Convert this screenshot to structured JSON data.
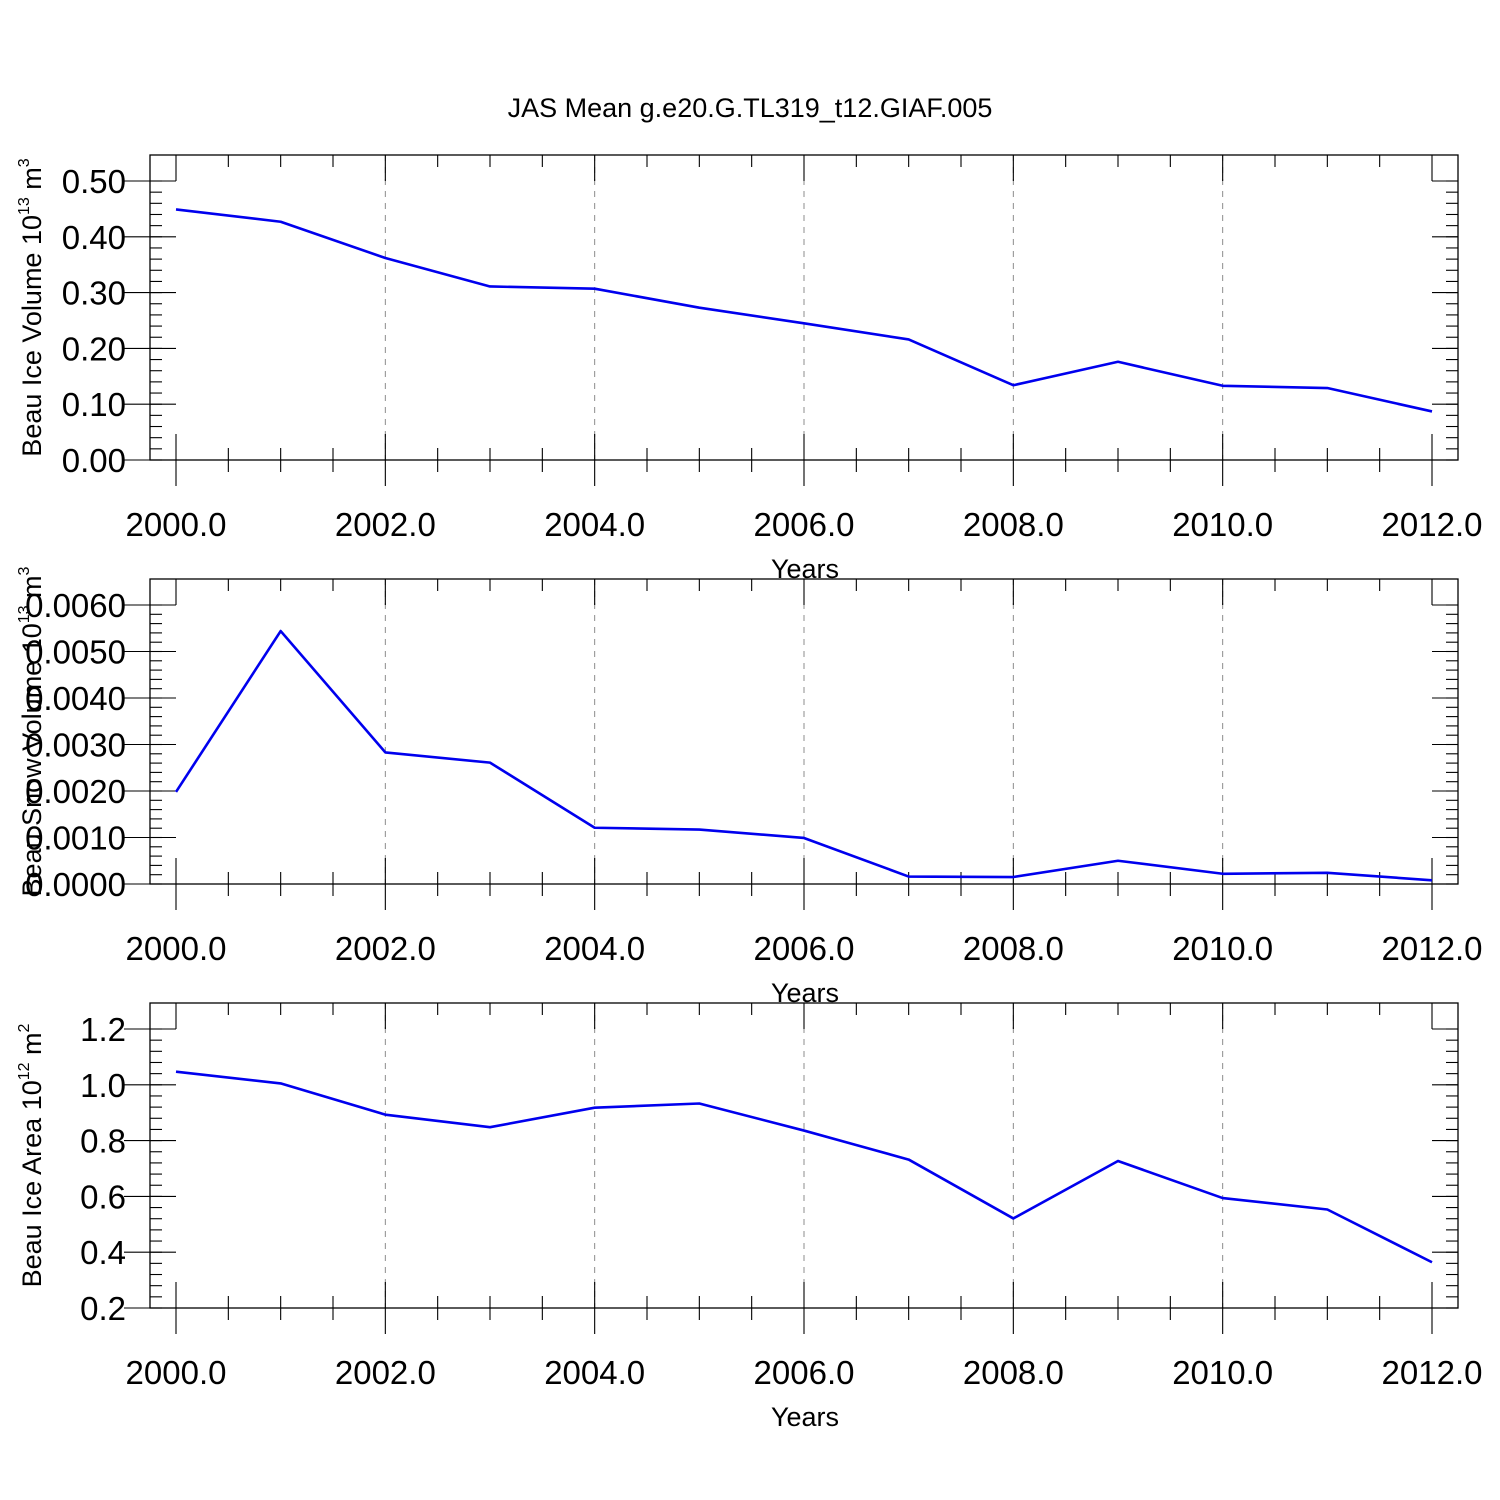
{
  "title": "JAS Mean g.e20.G.TL319_t12.GIAF.005",
  "colors": {
    "series": "#0000ee",
    "grid": "#8c8c8c",
    "axes": "#000000"
  },
  "chart_data": [
    {
      "type": "line",
      "xlabel": "Years",
      "ylabel": {
        "text": "Beau Ice Volume 10",
        "sup": "13",
        "unit": " m",
        "unit_sup": "3"
      },
      "xlim": [
        2000,
        2012
      ],
      "ylim": [
        0,
        0.5
      ],
      "x_ticks": [
        2000,
        2002,
        2004,
        2006,
        2008,
        2010,
        2012
      ],
      "x_tick_labels": [
        "2000.0",
        "2002.0",
        "2004.0",
        "2006.0",
        "2008.0",
        "2010.0",
        "2012.0"
      ],
      "y_ticks": [
        0,
        0.1,
        0.2,
        0.3,
        0.4,
        0.5
      ],
      "y_tick_labels": [
        "0.00",
        "0.10",
        "0.20",
        "0.30",
        "0.40",
        "0.50"
      ],
      "y_minor_step": 0.02,
      "grid": "vertical dashed at major x ticks",
      "series": [
        {
          "x": [
            2000,
            2001,
            2002,
            2003,
            2004,
            2005,
            2006,
            2007,
            2008,
            2009,
            2010,
            2011,
            2012
          ],
          "values": [
            0.449,
            0.427,
            0.362,
            0.311,
            0.307,
            0.273,
            0.245,
            0.216,
            0.134,
            0.176,
            0.133,
            0.129,
            0.087
          ]
        }
      ]
    },
    {
      "type": "line",
      "xlabel": "Years",
      "ylabel": {
        "text": "Beau Snow Volume 10",
        "sup": "13",
        "unit": " m",
        "unit_sup": "3"
      },
      "xlim": [
        2000,
        2012
      ],
      "ylim": [
        0,
        0.006
      ],
      "x_ticks": [
        2000,
        2002,
        2004,
        2006,
        2008,
        2010,
        2012
      ],
      "x_tick_labels": [
        "2000.0",
        "2002.0",
        "2004.0",
        "2006.0",
        "2008.0",
        "2010.0",
        "2012.0"
      ],
      "y_ticks": [
        0,
        0.001,
        0.002,
        0.003,
        0.004,
        0.005,
        0.006
      ],
      "y_tick_labels": [
        "0.0000",
        "0.0010",
        "0.0020",
        "0.0030",
        "0.0040",
        "0.0050",
        "0.0060"
      ],
      "y_minor_step": 0.0002,
      "grid": "vertical dashed at major x ticks",
      "series": [
        {
          "x": [
            2000,
            2001,
            2002,
            2003,
            2004,
            2005,
            2006,
            2007,
            2008,
            2009,
            2010,
            2011,
            2012
          ],
          "values": [
            0.00198,
            0.00544,
            0.00283,
            0.00261,
            0.00121,
            0.00117,
            0.00099,
            0.00016,
            0.00015,
            0.0005,
            0.00022,
            0.00024,
            8e-05
          ]
        }
      ]
    },
    {
      "type": "line",
      "xlabel": "Years",
      "ylabel": {
        "text": "Beau Ice Area 10",
        "sup": "12",
        "unit": " m",
        "unit_sup": "2"
      },
      "xlim": [
        2000,
        2012
      ],
      "ylim": [
        0.2,
        1.2
      ],
      "x_ticks": [
        2000,
        2002,
        2004,
        2006,
        2008,
        2010,
        2012
      ],
      "x_tick_labels": [
        "2000.0",
        "2002.0",
        "2004.0",
        "2006.0",
        "2008.0",
        "2010.0",
        "2012.0"
      ],
      "y_ticks": [
        0.2,
        0.4,
        0.6,
        0.8,
        1.0,
        1.2
      ],
      "y_tick_labels": [
        "0.2",
        "0.4",
        "0.6",
        "0.8",
        "1.0",
        "1.2"
      ],
      "y_minor_step": 0.04,
      "grid": "vertical dashed at major x ticks",
      "series": [
        {
          "x": [
            2000,
            2001,
            2002,
            2003,
            2004,
            2005,
            2006,
            2007,
            2008,
            2009,
            2010,
            2011,
            2012
          ],
          "values": [
            1.047,
            1.005,
            0.893,
            0.848,
            0.918,
            0.933,
            0.836,
            0.732,
            0.521,
            0.727,
            0.594,
            0.553,
            0.364
          ]
        }
      ]
    }
  ]
}
